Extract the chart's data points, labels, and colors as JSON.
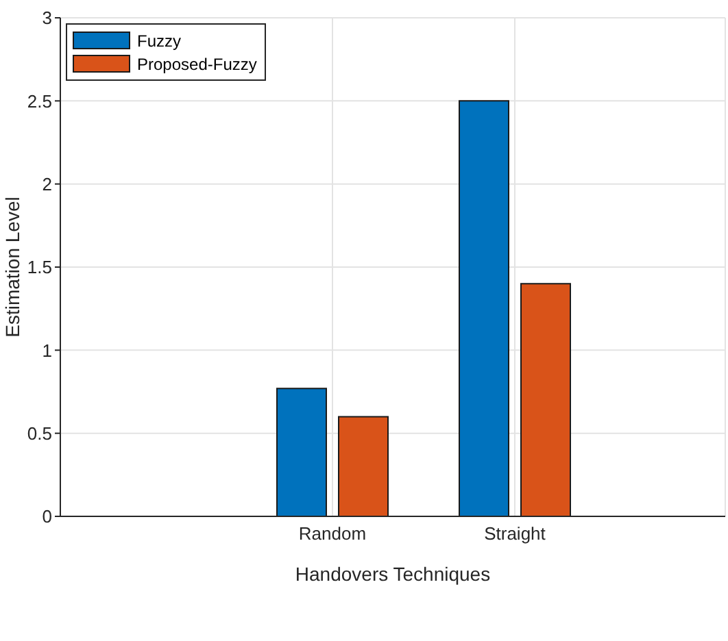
{
  "chart_data": {
    "type": "bar",
    "xlabel": "Handovers Techniques",
    "ylabel": "Estimation Level",
    "categories": [
      "Random",
      "Straight"
    ],
    "series": [
      {
        "name": "Fuzzy",
        "color": "#0072bd",
        "values": [
          0.77,
          2.5
        ]
      },
      {
        "name": "Proposed-Fuzzy",
        "color": "#d95319",
        "values": [
          0.6,
          1.4
        ]
      }
    ],
    "ylim": [
      0,
      3
    ],
    "yticks": [
      0,
      0.5,
      1,
      1.5,
      2,
      2.5,
      3
    ],
    "grid": true,
    "legend": "top left"
  }
}
